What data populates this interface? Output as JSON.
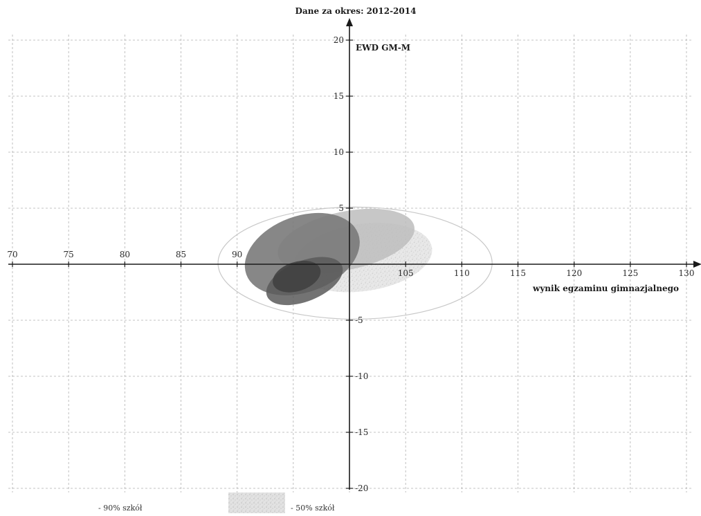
{
  "chart_data": {
    "type": "scatter",
    "title": "Dane za okres: 2012-2014",
    "xlabel": "wynik egzaminu gimnazjalnego",
    "ylabel": "EWD GM-M",
    "xlim": [
      70,
      130
    ],
    "ylim": [
      -20,
      20
    ],
    "x_ticks": [
      70,
      75,
      80,
      85,
      90,
      105,
      110,
      115,
      120,
      125,
      130
    ],
    "y_ticks": [
      20,
      15,
      10,
      5,
      -5,
      -10,
      -15,
      -20
    ],
    "y_tick_labels": [
      "20",
      "15",
      "10",
      "5",
      "-5",
      "-10",
      "-15",
      "-20"
    ],
    "grid": true,
    "ellipses": [
      {
        "cx": 100.5,
        "cy": 0.1,
        "rx": 12.2,
        "ry": 5.0,
        "angle": 0,
        "fill": "none",
        "stroke": "#c8c8c8",
        "opacity": 1.0
      },
      {
        "cx": 101.2,
        "cy": 0.6,
        "rx": 6.2,
        "ry": 3.0,
        "angle": -8,
        "fill": "#cfcfcf",
        "stroke": "none",
        "opacity": 0.8
      },
      {
        "cx": 99.7,
        "cy": 2.1,
        "rx": 6.2,
        "ry": 2.6,
        "angle": -12,
        "fill": "#bdbdbd",
        "stroke": "none",
        "opacity": 0.85
      },
      {
        "cx": 95.8,
        "cy": 0.9,
        "rx": 5.3,
        "ry": 3.4,
        "angle": -20,
        "fill": "#7a7a7a",
        "stroke": "none",
        "opacity": 0.9
      },
      {
        "cx": 96.0,
        "cy": -1.5,
        "rx": 3.6,
        "ry": 1.8,
        "angle": -22,
        "fill": "#5a5a5a",
        "stroke": "none",
        "opacity": 0.85
      },
      {
        "cx": 95.3,
        "cy": -1.1,
        "rx": 2.2,
        "ry": 1.3,
        "angle": -18,
        "fill": "#3f3f3f",
        "stroke": "none",
        "opacity": 0.85
      }
    ],
    "legend": [
      {
        "label": "- 90% szkół",
        "pattern": "dark"
      },
      {
        "label": "- 50% szkół",
        "pattern": "light"
      }
    ],
    "legend_position": "bottom-left"
  }
}
